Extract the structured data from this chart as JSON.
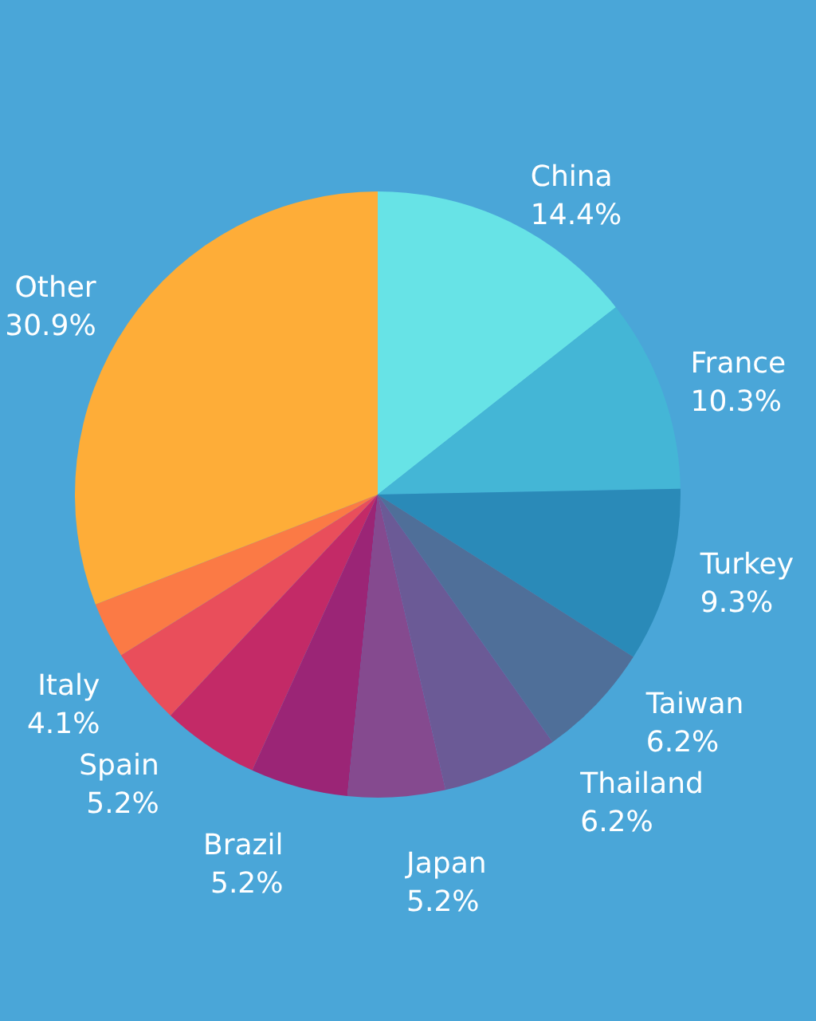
{
  "chart_data": {
    "type": "pie",
    "categories": [
      "China",
      "France",
      "Turkey",
      "Taiwan",
      "Thailand",
      "Japan",
      "Brazil",
      "Spain",
      "Italy",
      null,
      "Other"
    ],
    "values": [
      14.4,
      10.3,
      9.3,
      6.2,
      6.2,
      5.2,
      5.2,
      5.2,
      4.1,
      3.0,
      30.9
    ],
    "value_labels": [
      "14.4%",
      "10.3%",
      "9.3%",
      "6.2%",
      "6.2%",
      "5.2%",
      "5.2%",
      "5.2%",
      "4.1%",
      null,
      "30.9%"
    ],
    "colors": [
      "#67e3e6",
      "#44b6d6",
      "#2a8ab8",
      "#4f6f99",
      "#6b5a96",
      "#854a8f",
      "#9b2576",
      "#c32a67",
      "#e94e5b",
      "#fb7a45",
      "#fead38"
    ],
    "legend": false
  }
}
